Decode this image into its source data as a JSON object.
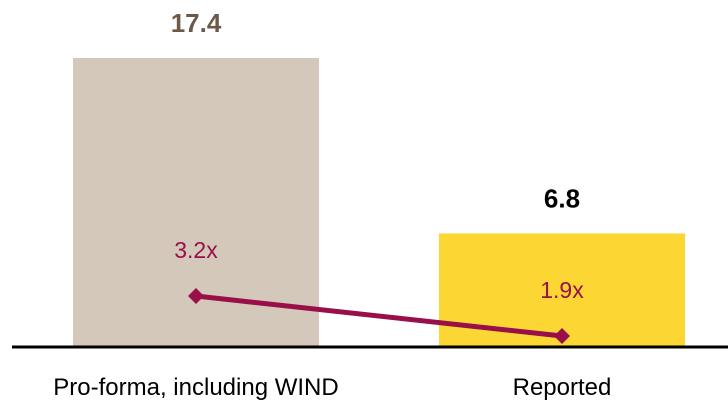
{
  "chart_data": {
    "type": "bar",
    "categories": [
      "Pro-forma, including WIND",
      "Reported"
    ],
    "values": [
      17.4,
      6.8
    ],
    "value_labels": [
      "17.4",
      "6.8"
    ],
    "ylim": [
      0,
      17.4
    ],
    "grid": false,
    "legend": "none",
    "colors": {
      "bars": [
        "#d3c8ba",
        "#fcd734"
      ],
      "bar_value_labels": [
        "#6b5a4a",
        "#000000"
      ],
      "line": "#990f4a",
      "axis": "#000000",
      "category_labels": "#000000"
    },
    "line_series": {
      "type": "line",
      "values": [
        3.2,
        1.9
      ],
      "value_labels": [
        "3.2x",
        "1.9x"
      ],
      "marker": "diamond"
    }
  }
}
